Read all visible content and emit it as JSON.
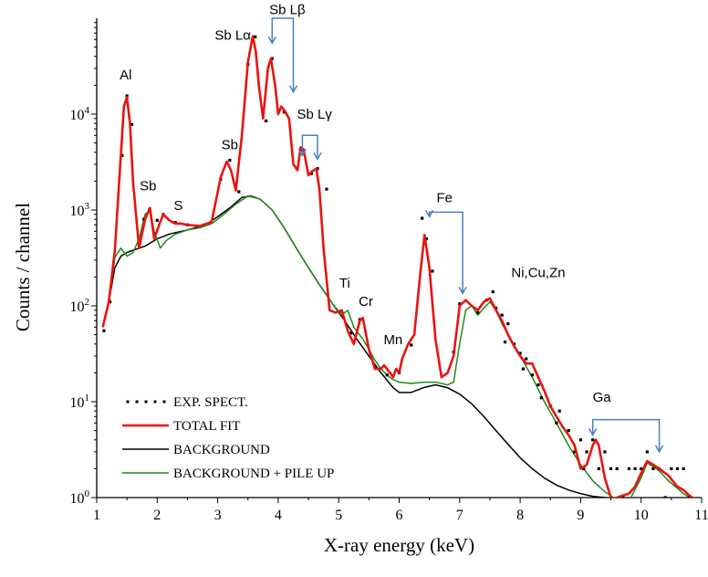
{
  "chart_data": {
    "type": "line",
    "xlabel": "X-ray energy (keV)",
    "ylabel": "Counts / channel",
    "xlim": [
      1,
      11
    ],
    "ylim": [
      1,
      100000
    ],
    "yscale": "log",
    "x_ticks": [
      1,
      2,
      3,
      4,
      5,
      6,
      7,
      8,
      9,
      10,
      11
    ],
    "y_ticks": [
      {
        "value": 1,
        "base": "10",
        "exp": "0"
      },
      {
        "value": 10,
        "base": "10",
        "exp": "1"
      },
      {
        "value": 100,
        "base": "10",
        "exp": "2"
      },
      {
        "value": 1000,
        "base": "10",
        "exp": "3"
      },
      {
        "value": 10000,
        "base": "10",
        "exp": "4"
      }
    ],
    "legend": {
      "position": "bottom-left",
      "entries": [
        {
          "label": "EXP. SPECT.",
          "style": "dots",
          "color": "#000000"
        },
        {
          "label": "TOTAL FIT",
          "style": "line",
          "color": "#e8140f"
        },
        {
          "label": "BACKGROUND",
          "style": "line",
          "color": "#000000"
        },
        {
          "label": "BACKGROUND + PILE UP",
          "style": "line",
          "color": "#1e8c1a"
        }
      ]
    },
    "annotations": [
      {
        "text": "Al",
        "x": 1.48,
        "y": 23000
      },
      {
        "text": "Sb",
        "x": 1.85,
        "y": 1600
      },
      {
        "text": "S",
        "x": 2.35,
        "y": 1000
      },
      {
        "text": "Sb",
        "x": 3.2,
        "y": 4300
      },
      {
        "text": "Sb Lα",
        "x": 3.25,
        "y": 60000
      },
      {
        "text": "Sb Lβ",
        "x": 4.15,
        "y": 110000
      },
      {
        "text": "Sb Lγ",
        "x": 4.6,
        "y": 9000
      },
      {
        "text": "Fe",
        "x": 6.75,
        "y": 1200
      },
      {
        "text": "Ti",
        "x": 5.1,
        "y": 155
      },
      {
        "text": "Cr",
        "x": 5.45,
        "y": 100
      },
      {
        "text": "Mn",
        "x": 5.9,
        "y": 40
      },
      {
        "text": "Ni,Cu,Zn",
        "x": 8.3,
        "y": 200
      },
      {
        "text": "Ga",
        "x": 9.35,
        "y": 10
      }
    ],
    "markers": [
      {
        "from_x": 3.9,
        "to_x": 4.25,
        "top_y": 100000,
        "left_end_y": 55000,
        "right_end_y": 17000,
        "color": "#4a7fc1"
      },
      {
        "from_x": 4.4,
        "to_x": 4.65,
        "top_y": 6000,
        "left_end_y": 3700,
        "right_end_y": 3400,
        "color": "#4a7fc1"
      },
      {
        "from_x": 6.5,
        "to_x": 7.05,
        "top_y": 950,
        "left_end_y": 850,
        "right_end_y": 135,
        "color": "#4a7fc1"
      },
      {
        "from_x": 9.2,
        "to_x": 10.3,
        "top_y": 6.5,
        "left_end_y": 4.5,
        "right_end_y": 3.0,
        "color": "#4a7fc1"
      }
    ],
    "series": [
      {
        "name": "TOTAL FIT",
        "color": "#e8140f",
        "x": [
          1.1,
          1.2,
          1.3,
          1.4,
          1.45,
          1.5,
          1.55,
          1.6,
          1.7,
          1.8,
          1.88,
          1.95,
          2.05,
          2.1,
          2.2,
          2.3,
          2.4,
          2.5,
          2.7,
          2.9,
          3.05,
          3.15,
          3.22,
          3.3,
          3.4,
          3.5,
          3.58,
          3.63,
          3.68,
          3.75,
          3.83,
          3.88,
          3.95,
          4.0,
          4.05,
          4.1,
          4.18,
          4.25,
          4.32,
          4.37,
          4.42,
          4.5,
          4.55,
          4.63,
          4.68,
          4.75,
          4.85,
          4.95,
          5.05,
          5.15,
          5.25,
          5.35,
          5.4,
          5.5,
          5.6,
          5.7,
          5.75,
          5.85,
          5.9,
          5.95,
          6.0,
          6.05,
          6.15,
          6.25,
          6.35,
          6.42,
          6.5,
          6.6,
          6.7,
          6.8,
          6.9,
          7.0,
          7.1,
          7.2,
          7.3,
          7.4,
          7.5,
          7.6,
          7.7,
          7.8,
          7.9,
          8.0,
          8.1,
          8.2,
          8.3,
          8.4,
          8.5,
          8.6,
          8.7,
          8.8,
          8.9,
          9.0,
          9.1,
          9.2,
          9.25,
          9.3,
          9.4,
          9.5,
          9.55,
          9.6,
          9.7,
          9.8,
          9.9,
          10.0,
          10.1,
          10.2,
          10.3,
          10.45,
          10.6,
          10.7,
          10.8,
          10.9
        ],
        "y": [
          60,
          110,
          380,
          3800,
          12000,
          15000,
          8000,
          2000,
          400,
          800,
          1050,
          500,
          750,
          900,
          780,
          720,
          720,
          700,
          680,
          750,
          2200,
          3200,
          2600,
          1600,
          6000,
          35000,
          65000,
          45000,
          20000,
          9000,
          30000,
          38000,
          20000,
          10000,
          12000,
          11000,
          9000,
          3000,
          2600,
          4500,
          4300,
          2300,
          2500,
          2700,
          1700,
          400,
          90,
          85,
          90,
          55,
          40,
          70,
          75,
          35,
          22,
          22,
          24,
          20,
          18,
          22,
          20,
          28,
          40,
          50,
          220,
          550,
          250,
          45,
          18,
          20,
          30,
          100,
          115,
          100,
          90,
          110,
          120,
          90,
          70,
          50,
          38,
          30,
          25,
          25,
          18,
          13,
          9,
          7,
          5.5,
          4.5,
          3.5,
          2.0,
          2.2,
          3.5,
          4.0,
          3.5,
          1.6,
          1.0,
          0.9,
          1.0,
          1.05,
          1.1,
          1.3,
          1.8,
          2.4,
          2.2,
          2.0,
          1.7,
          1.3,
          1.2,
          1.05,
          0.95
        ]
      },
      {
        "name": "BACKGROUND",
        "color": "#000000",
        "x": [
          1.1,
          1.2,
          1.3,
          1.4,
          1.5,
          1.6,
          1.8,
          2.0,
          2.2,
          2.5,
          2.8,
          3.0,
          3.2,
          3.4,
          3.55,
          3.7,
          3.9,
          4.1,
          4.3,
          4.5,
          4.7,
          4.9,
          5.1,
          5.3,
          5.5,
          5.7,
          5.9,
          6.0,
          6.2,
          6.4,
          6.6,
          6.8,
          7.0,
          7.2,
          7.4,
          7.6,
          7.8,
          8.0,
          8.2,
          8.4,
          8.6,
          8.8,
          9.0,
          9.2,
          9.4,
          9.6,
          9.8,
          10.0,
          10.2
        ],
        "y": [
          60,
          110,
          250,
          330,
          360,
          380,
          420,
          500,
          560,
          620,
          700,
          850,
          1050,
          1350,
          1400,
          1300,
          1000,
          650,
          400,
          250,
          160,
          105,
          70,
          45,
          30,
          20,
          14,
          12.5,
          12.5,
          14,
          15,
          14,
          12,
          9.5,
          7,
          5,
          3.6,
          2.6,
          2.0,
          1.6,
          1.35,
          1.2,
          1.1,
          1.03,
          1.0,
          0.98,
          0.96,
          0.95,
          0.94
        ]
      },
      {
        "name": "BACKGROUND + PILE UP",
        "color": "#1e8c1a",
        "x": [
          1.1,
          1.2,
          1.3,
          1.4,
          1.5,
          1.6,
          1.7,
          1.8,
          1.88,
          1.95,
          2.05,
          2.15,
          2.3,
          2.5,
          2.7,
          2.9,
          3.1,
          3.3,
          3.5,
          3.7,
          3.9,
          4.1,
          4.3,
          4.5,
          4.7,
          4.9,
          5.05,
          5.15,
          5.25,
          5.4,
          5.5,
          5.6,
          5.7,
          5.8,
          5.9,
          6.0,
          6.2,
          6.4,
          6.6,
          6.8,
          6.9,
          7.0,
          7.1,
          7.2,
          7.3,
          7.4,
          7.5,
          7.6,
          7.7,
          7.8,
          8.0,
          8.2,
          8.4,
          8.6,
          8.8,
          9.0,
          9.2,
          9.4,
          9.6,
          9.8,
          10.0,
          10.1,
          10.2,
          10.3,
          10.45,
          10.6,
          10.7,
          10.8,
          10.9
        ],
        "y": [
          60,
          110,
          320,
          400,
          330,
          360,
          500,
          900,
          1000,
          600,
          400,
          480,
          560,
          620,
          650,
          720,
          900,
          1150,
          1400,
          1300,
          1000,
          650,
          400,
          250,
          160,
          105,
          80,
          90,
          60,
          45,
          35,
          27,
          22,
          19,
          17,
          16,
          15.5,
          16,
          16,
          15,
          16,
          40,
          90,
          100,
          80,
          95,
          110,
          90,
          65,
          50,
          30,
          18,
          10,
          6,
          3.5,
          2.2,
          1.5,
          1.15,
          0.95,
          0.92,
          1.6,
          2.3,
          2.1,
          1.9,
          1.5,
          1.25,
          1.1,
          1.0,
          0.95
        ]
      },
      {
        "name": "EXP. SPECT.",
        "color": "#000000",
        "style": "points",
        "x": [
          1.12,
          1.22,
          1.42,
          1.5,
          1.58,
          1.78,
          1.87,
          2.0,
          2.1,
          2.3,
          2.5,
          3.05,
          3.2,
          3.35,
          3.5,
          3.62,
          3.8,
          3.9,
          4.1,
          4.4,
          4.55,
          4.65,
          4.8,
          5.05,
          5.2,
          5.35,
          5.6,
          5.8,
          6.0,
          6.2,
          6.38,
          6.45,
          6.55,
          6.9,
          7.0,
          7.3,
          7.45,
          7.55,
          7.6,
          7.7,
          7.75,
          7.8,
          7.9,
          8.0,
          8.05,
          8.1,
          8.2,
          8.3,
          8.35,
          8.5,
          8.6,
          8.65,
          8.8,
          8.9,
          9.0,
          9.05,
          9.1,
          9.2,
          9.3,
          9.4,
          9.5,
          9.6,
          9.7,
          9.8,
          9.9,
          10.0,
          10.1,
          10.2,
          10.3,
          10.4,
          10.5,
          10.6,
          10.7,
          10.8
        ],
        "y": [
          55,
          110,
          3700,
          15500,
          7800,
          800,
          1000,
          780,
          900,
          740,
          700,
          2100,
          3300,
          1550,
          33000,
          64000,
          8500,
          38000,
          10500,
          4200,
          2400,
          2700,
          1650,
          88,
          52,
          72,
          23,
          19,
          20,
          39,
          820,
          500,
          230,
          33,
          105,
          85,
          115,
          140,
          95,
          80,
          42,
          65,
          40,
          32,
          22,
          28,
          19,
          15,
          11,
          9,
          6,
          8,
          5,
          3,
          4,
          2,
          3,
          4,
          2,
          3,
          2,
          2,
          1,
          2,
          2,
          2,
          3,
          2,
          2,
          1,
          2,
          2,
          2,
          1
        ]
      }
    ]
  }
}
